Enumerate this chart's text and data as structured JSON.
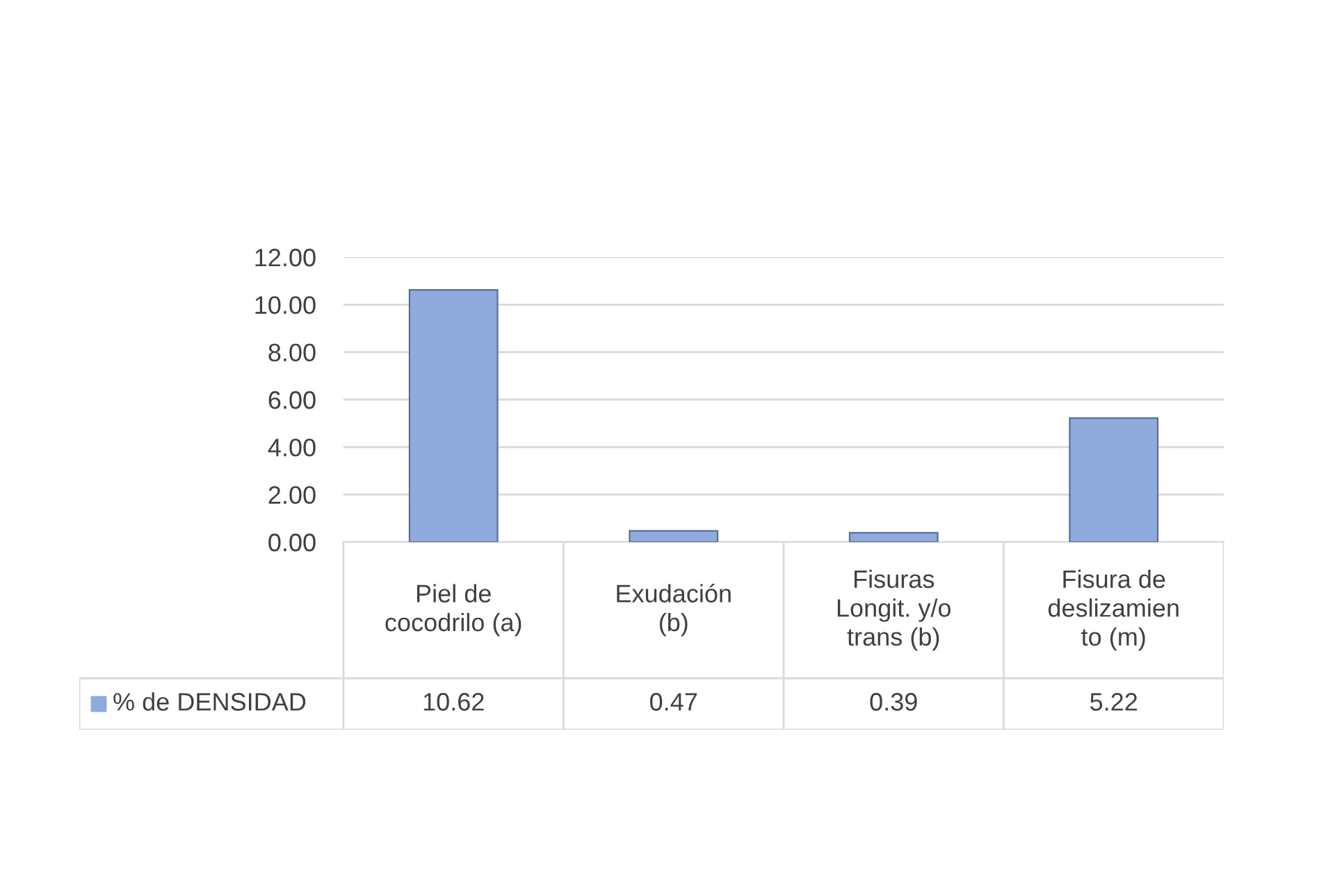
{
  "chart_data": {
    "type": "bar",
    "categories": [
      "Piel de\ncocodrilo (a)",
      "Exudación\n(b)",
      "Fisuras\nLongit. y/o\ntrans (b)",
      "Fisura de\ndeslizamien\nto (m)"
    ],
    "series": [
      {
        "name": "% de DENSIDAD",
        "color": "#8faadc",
        "values": [
          10.62,
          0.47,
          0.39,
          5.22
        ]
      }
    ],
    "ylim": [
      0,
      12
    ],
    "yticks": [
      {
        "value": 0,
        "label": "0.00"
      },
      {
        "value": 2,
        "label": "2.00"
      },
      {
        "value": 4,
        "label": "4.00"
      },
      {
        "value": 6,
        "label": "6.00"
      },
      {
        "value": 8,
        "label": "8.00"
      },
      {
        "value": 10,
        "label": "10.00"
      },
      {
        "value": 12,
        "label": "12.00"
      }
    ],
    "grid": "y",
    "legend": "bottom",
    "data_labels": true
  }
}
